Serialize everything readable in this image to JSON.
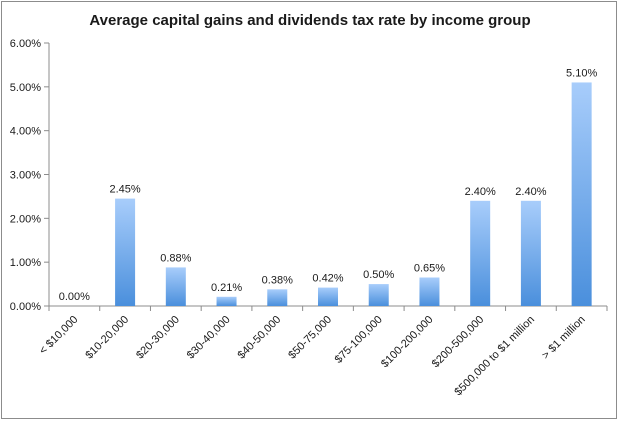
{
  "chart_data": {
    "type": "bar",
    "title": "Average capital gains and dividends tax rate by income group",
    "xlabel": "",
    "ylabel": "",
    "categories": [
      "< $10,000",
      "$10-20,000",
      "$20-30,000",
      "$30-40,000",
      "$40-50,000",
      "$50-75,000",
      "$75-100,000",
      "$100-200,000",
      "$200-500,000",
      "$500,000 to $1 million",
      "> $1 million"
    ],
    "values": [
      0.0,
      2.45,
      0.88,
      0.21,
      0.38,
      0.42,
      0.5,
      0.65,
      2.4,
      2.4,
      5.1
    ],
    "data_labels": [
      "0.00%",
      "2.45%",
      "0.88%",
      "0.21%",
      "0.38%",
      "0.42%",
      "0.50%",
      "0.65%",
      "2.40%",
      "2.40%",
      "5.10%"
    ],
    "ylim": [
      0,
      6
    ],
    "yticks": [
      0,
      1,
      2,
      3,
      4,
      5,
      6
    ],
    "ytick_labels": [
      "0.00%",
      "1.00%",
      "2.00%",
      "3.00%",
      "4.00%",
      "5.00%",
      "6.00%"
    ],
    "grid": false,
    "legend": "none",
    "bar_color_top": "#a8cdfb",
    "bar_color_bottom": "#4a8fdc"
  }
}
